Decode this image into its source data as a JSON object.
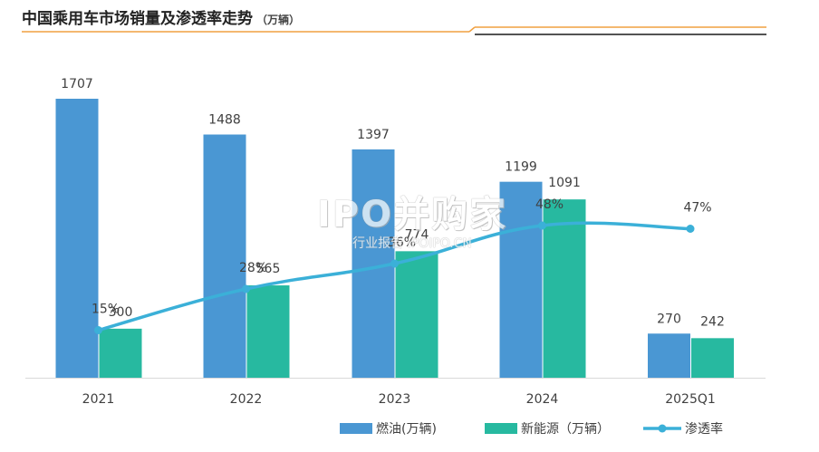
{
  "title": {
    "main": "中国乘用车市场销量及渗透率走势",
    "unit": "（万辆）"
  },
  "watermark": {
    "logo": "IPO并购家",
    "sub": "行业报告 IPOIPO.CN"
  },
  "colors": {
    "fuel": "#4a97d3",
    "nev": "#27b9a0",
    "rate": "#3bb0d8",
    "title_rule": "#f0a040"
  },
  "chart_data": {
    "type": "bar",
    "categories": [
      "2021",
      "2022",
      "2023",
      "2024",
      "2025Q1"
    ],
    "series": [
      {
        "name": "燃油(万辆)",
        "type": "bar",
        "values": [
          1707,
          1488,
          1397,
          1199,
          270
        ]
      },
      {
        "name": "新能源（万辆）",
        "type": "bar",
        "values": [
          300,
          565,
          774,
          1091,
          242
        ]
      },
      {
        "name": "渗透率",
        "type": "line",
        "values": [
          15,
          28,
          36,
          48,
          47
        ],
        "labels": [
          "15%",
          "28%",
          "36%",
          "48%",
          "47%"
        ]
      }
    ],
    "bar_labels": {
      "fuel": [
        "1707",
        "1488",
        "1397",
        "1199",
        "270"
      ],
      "nev": [
        "300",
        "565",
        "774",
        "1091",
        "242"
      ]
    },
    "xlabel": "",
    "ylabel": "",
    "ylim": [
      0,
      1800
    ],
    "rate_ylim": [
      0,
      100
    ],
    "grid": false,
    "legend_position": "bottom-right"
  }
}
